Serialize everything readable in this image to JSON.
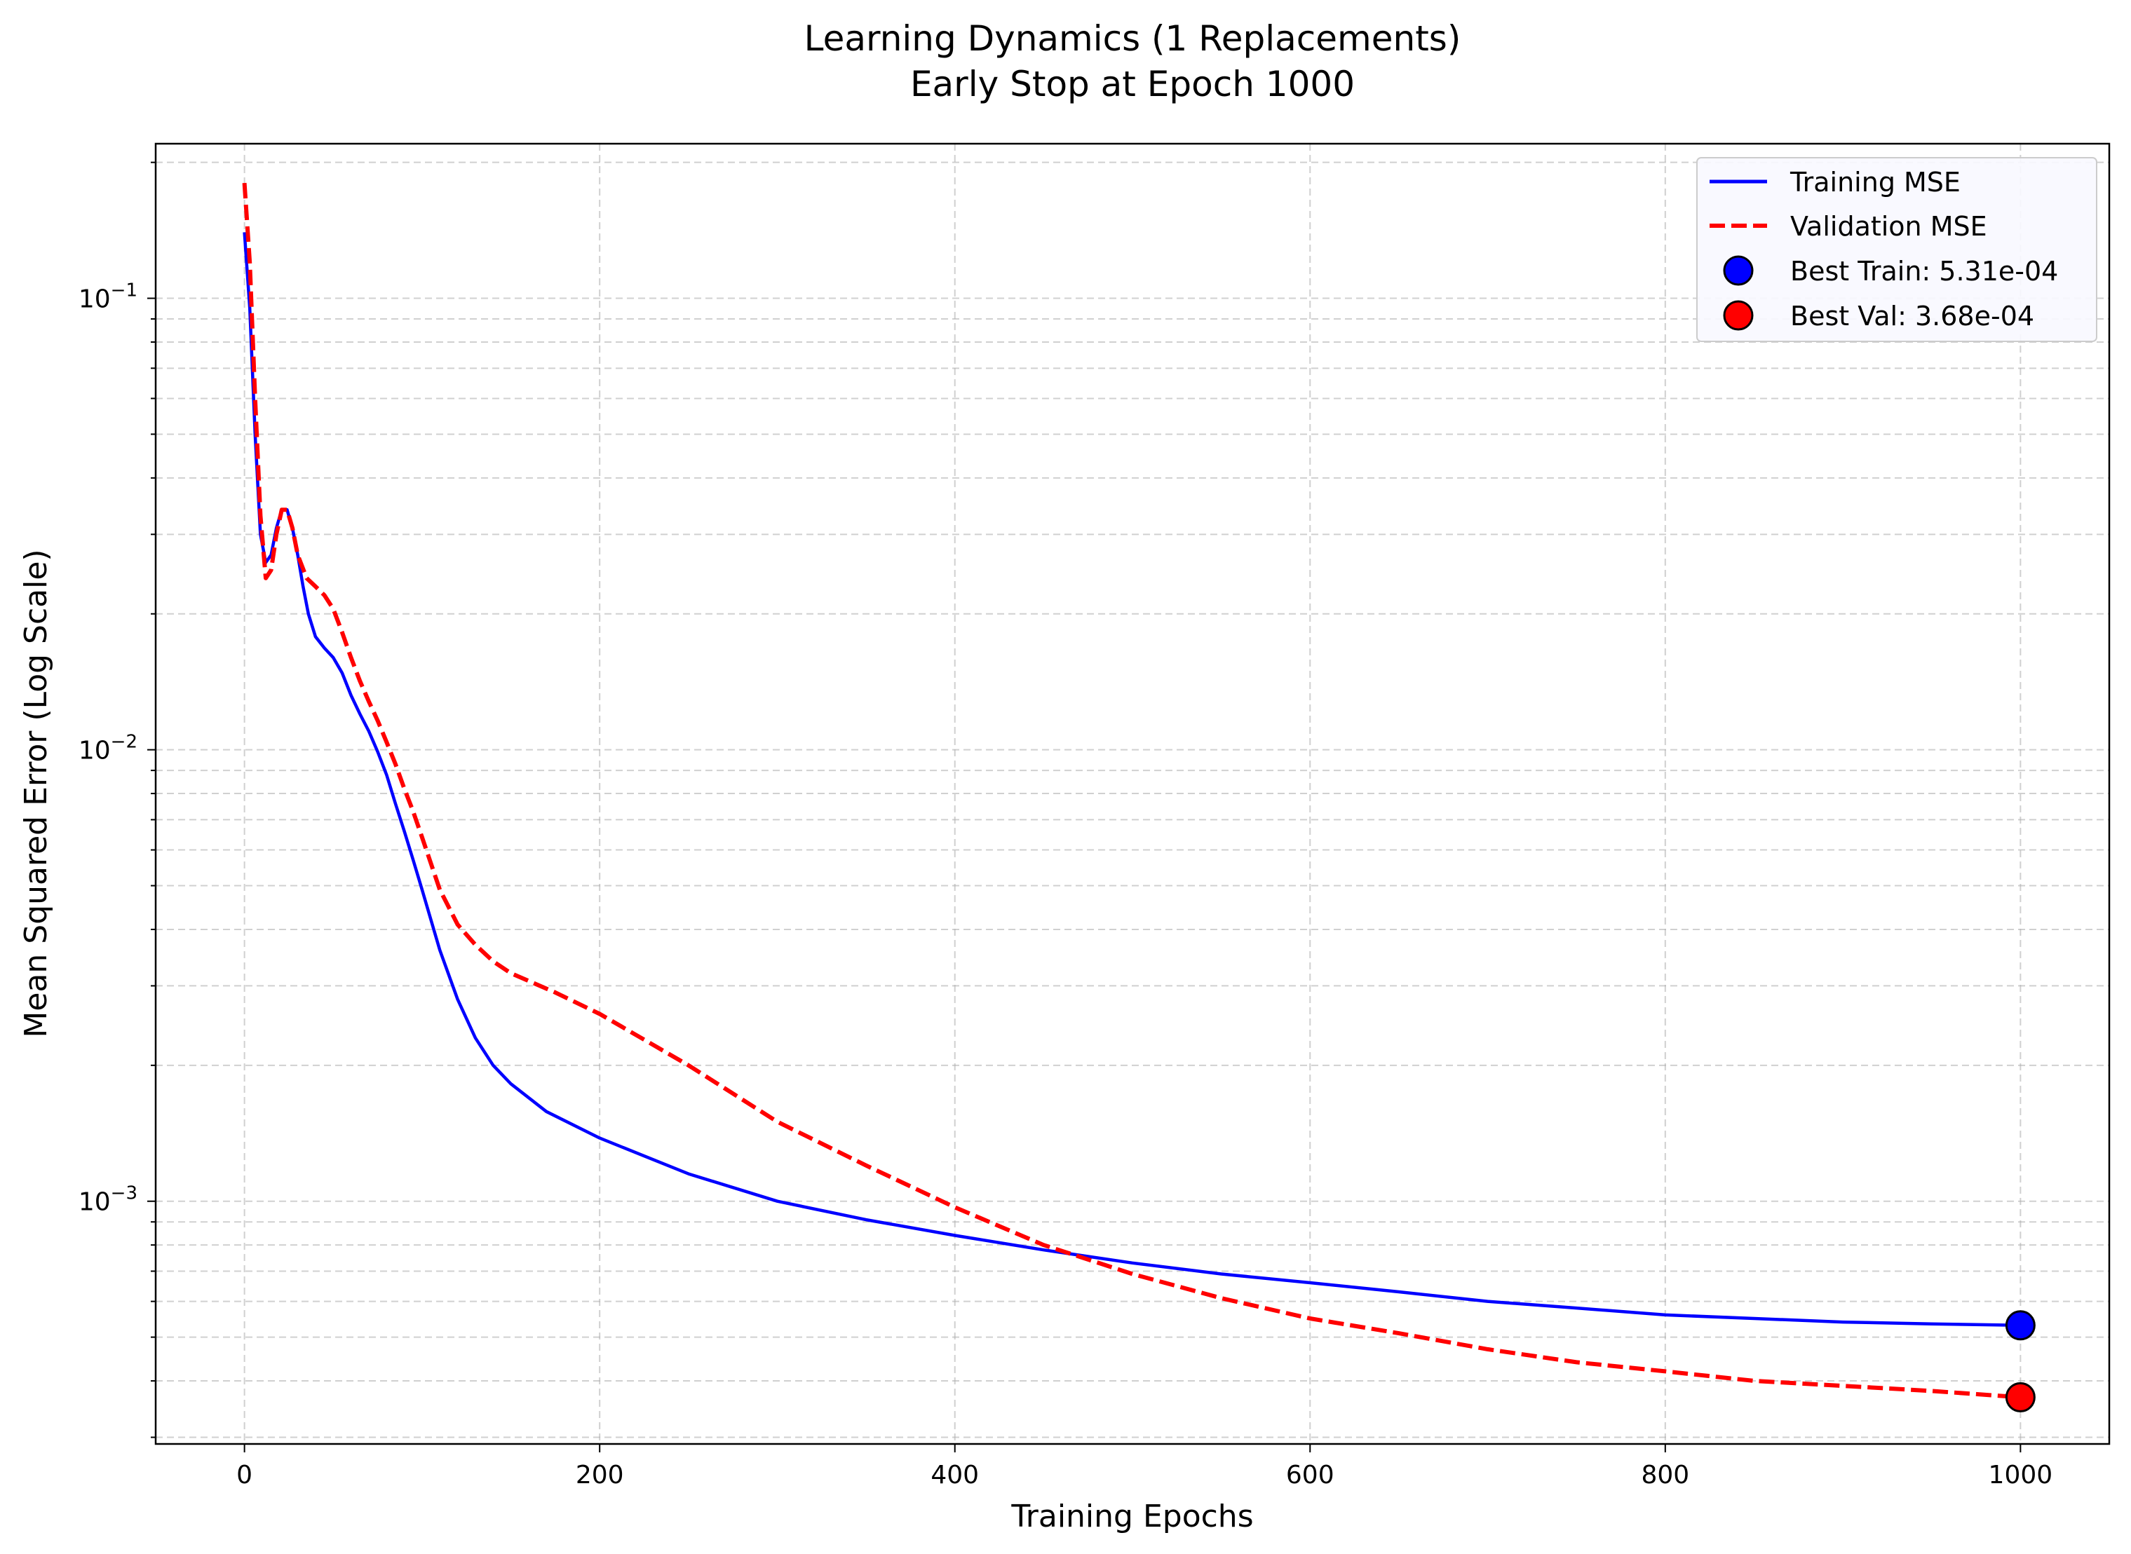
{
  "chart_data": {
    "type": "line",
    "title": "Learning Dynamics (1 Replacements)",
    "subtitle": "Early Stop at Epoch 1000",
    "xlabel": "Training Epochs",
    "ylabel": "Mean Squared Error (Log Scale)",
    "xlim": [
      -50,
      1050
    ],
    "ylim": [
      0.00029,
      0.22
    ],
    "yscale": "log",
    "grid": true,
    "legend_position": "top-right",
    "x_ticks": [
      0,
      200,
      400,
      600,
      800,
      1000
    ],
    "x_tick_labels": [
      "0",
      "200",
      "400",
      "600",
      "800",
      "1000"
    ],
    "y_major_ticks": [
      0.001,
      0.01,
      0.1
    ],
    "y_tick_labels": [
      {
        "base": "10",
        "exp": "−3"
      },
      {
        "base": "10",
        "exp": "−2"
      },
      {
        "base": "10",
        "exp": "−1"
      }
    ],
    "series": [
      {
        "name": "Training MSE",
        "color": "#0000ff",
        "style": "solid",
        "points": [
          [
            0,
            0.14
          ],
          [
            3,
            0.095
          ],
          [
            6,
            0.05
          ],
          [
            9,
            0.03
          ],
          [
            12,
            0.026
          ],
          [
            15,
            0.027
          ],
          [
            18,
            0.031
          ],
          [
            21,
            0.034
          ],
          [
            24,
            0.034
          ],
          [
            27,
            0.031
          ],
          [
            30,
            0.027
          ],
          [
            33,
            0.023
          ],
          [
            36,
            0.02
          ],
          [
            40,
            0.0178
          ],
          [
            45,
            0.0168
          ],
          [
            50,
            0.016
          ],
          [
            55,
            0.0148
          ],
          [
            60,
            0.0132
          ],
          [
            65,
            0.012
          ],
          [
            70,
            0.011
          ],
          [
            75,
            0.0099
          ],
          [
            80,
            0.0088
          ],
          [
            85,
            0.0076
          ],
          [
            90,
            0.0066
          ],
          [
            95,
            0.0057
          ],
          [
            100,
            0.0049
          ],
          [
            110,
            0.0036
          ],
          [
            120,
            0.0028
          ],
          [
            130,
            0.0023
          ],
          [
            140,
            0.002
          ],
          [
            150,
            0.00182
          ],
          [
            170,
            0.00158
          ],
          [
            200,
            0.00138
          ],
          [
            250,
            0.00115
          ],
          [
            300,
            0.001
          ],
          [
            350,
            0.00091
          ],
          [
            400,
            0.00084
          ],
          [
            450,
            0.00078
          ],
          [
            500,
            0.00073
          ],
          [
            550,
            0.00069
          ],
          [
            600,
            0.00066
          ],
          [
            650,
            0.00063
          ],
          [
            700,
            0.0006
          ],
          [
            750,
            0.00058
          ],
          [
            800,
            0.00056
          ],
          [
            850,
            0.00055
          ],
          [
            900,
            0.00054
          ],
          [
            950,
            0.000535
          ],
          [
            1000,
            0.000531
          ]
        ]
      },
      {
        "name": "Validation MSE",
        "color": "#ff0000",
        "style": "dashed",
        "points": [
          [
            0,
            0.18
          ],
          [
            3,
            0.12
          ],
          [
            6,
            0.06
          ],
          [
            9,
            0.033
          ],
          [
            12,
            0.024
          ],
          [
            15,
            0.025
          ],
          [
            18,
            0.03
          ],
          [
            21,
            0.034
          ],
          [
            24,
            0.034
          ],
          [
            27,
            0.031
          ],
          [
            30,
            0.027
          ],
          [
            35,
            0.024
          ],
          [
            40,
            0.023
          ],
          [
            45,
            0.022
          ],
          [
            50,
            0.0205
          ],
          [
            55,
            0.0182
          ],
          [
            60,
            0.016
          ],
          [
            65,
            0.0142
          ],
          [
            70,
            0.0128
          ],
          [
            75,
            0.0116
          ],
          [
            80,
            0.0104
          ],
          [
            85,
            0.0093
          ],
          [
            90,
            0.0082
          ],
          [
            95,
            0.0073
          ],
          [
            100,
            0.0064
          ],
          [
            110,
            0.0049
          ],
          [
            120,
            0.0041
          ],
          [
            130,
            0.0037
          ],
          [
            140,
            0.0034
          ],
          [
            150,
            0.0032
          ],
          [
            175,
            0.0029
          ],
          [
            200,
            0.0026
          ],
          [
            250,
            0.002
          ],
          [
            300,
            0.0015
          ],
          [
            350,
            0.0012
          ],
          [
            400,
            0.00097
          ],
          [
            450,
            0.0008
          ],
          [
            500,
            0.00069
          ],
          [
            550,
            0.00061
          ],
          [
            600,
            0.00055
          ],
          [
            650,
            0.00051
          ],
          [
            700,
            0.00047
          ],
          [
            750,
            0.00044
          ],
          [
            800,
            0.00042
          ],
          [
            850,
            0.0004
          ],
          [
            900,
            0.00039
          ],
          [
            950,
            0.00038
          ],
          [
            1000,
            0.000368
          ]
        ]
      }
    ],
    "markers": [
      {
        "name": "Best Train: 5.31e-04",
        "x": 1000,
        "y": 0.000531,
        "color": "#0000ff"
      },
      {
        "name": "Best Val: 3.68e-04",
        "x": 1000,
        "y": 0.000368,
        "color": "#ff0000"
      }
    ]
  }
}
